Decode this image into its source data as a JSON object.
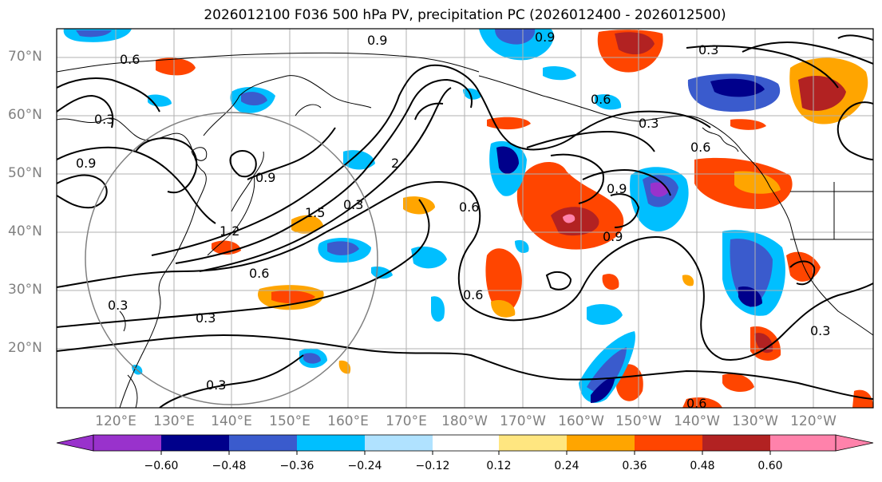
{
  "title": "2026012100 F036 500 hPa PV, precipitation PC (2026012400 - 2026012500)",
  "lat_labels": [
    "70°N",
    "60°N",
    "50°N",
    "40°N",
    "30°N",
    "20°N"
  ],
  "lon_labels": [
    "120°E",
    "130°E",
    "140°E",
    "150°E",
    "160°E",
    "170°E",
    "180°W",
    "170°W",
    "160°W",
    "150°W",
    "140°W",
    "130°W",
    "120°W"
  ],
  "contour_labels": [
    "0.3",
    "0.6",
    "0.9",
    "1.2",
    "1.5",
    "2"
  ],
  "colorbar": {
    "ticks": [
      "−0.60",
      "−0.48",
      "−0.36",
      "−0.24",
      "−0.12",
      "0.12",
      "0.24",
      "0.36",
      "0.48",
      "0.60"
    ],
    "colors": [
      "#9932cc",
      "#00008b",
      "#3a5bcd",
      "#00bfff",
      "#b0e2ff",
      "#ffffff",
      "#ffe680",
      "#ffa500",
      "#ff4500",
      "#b22222",
      "#ff82ab"
    ]
  }
}
